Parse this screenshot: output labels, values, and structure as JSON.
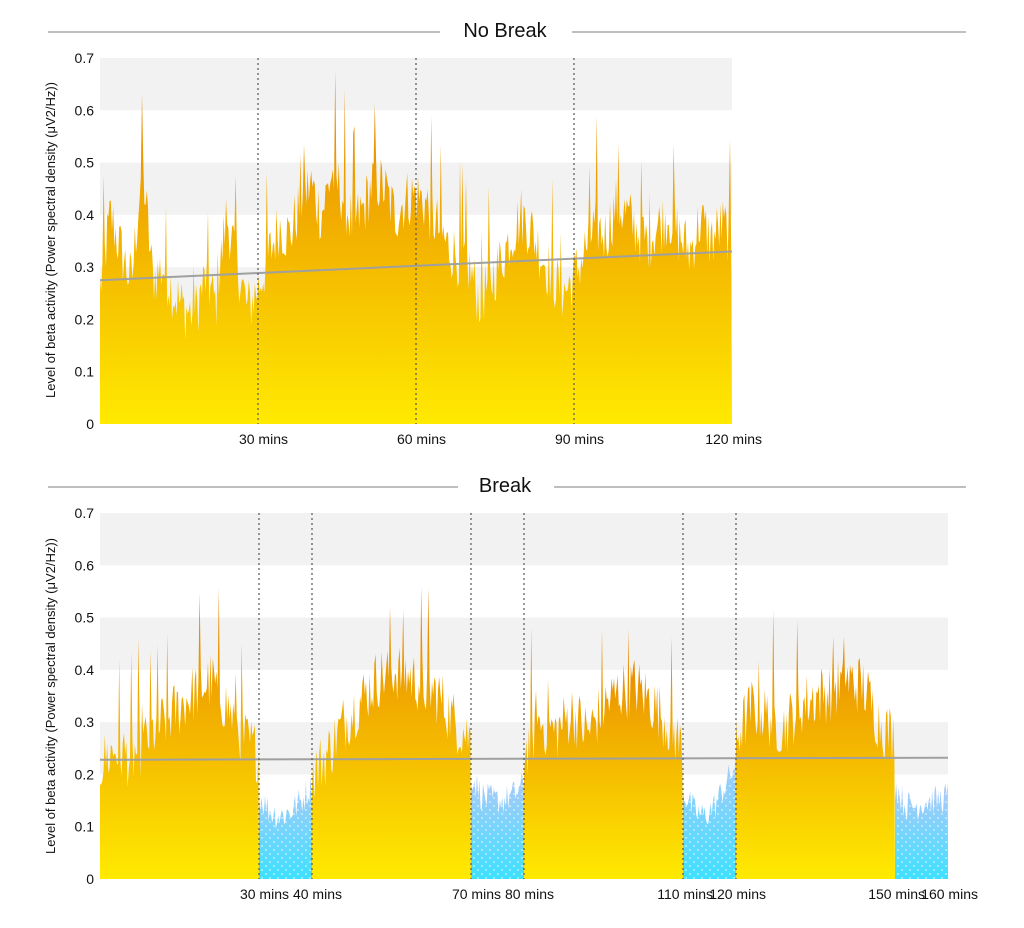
{
  "chart_data": [
    {
      "type": "area",
      "title": "No Break",
      "ylabel": "Level of beta activity (Power spectral density (μV2/Hz))",
      "xlabel": "",
      "ylim": [
        0,
        0.7
      ],
      "xlim": [
        0,
        120
      ],
      "yticks": [
        "0",
        "0.1",
        "0.2",
        "0.3",
        "0.4",
        "0.5",
        "0.6",
        "0.7"
      ],
      "xticks": [
        {
          "value": 30,
          "label": "30 mins"
        },
        {
          "value": 60,
          "label": "60 mins"
        },
        {
          "value": 90,
          "label": "90 mins"
        },
        {
          "value": 120,
          "label": "120 mins"
        }
      ],
      "dividers": [
        30,
        60,
        90
      ],
      "grid": "alternating-bands",
      "colors": {
        "active_top": "#e8900a",
        "active_bottom": "#ffe800",
        "trend": "#a0a0a0",
        "band": "#f2f2f2"
      },
      "trend": {
        "x": [
          0,
          120
        ],
        "y": [
          0.275,
          0.33
        ]
      },
      "series": [
        {
          "phase": "active",
          "x": [
            0,
            2,
            4,
            6,
            8,
            10,
            12,
            14,
            16,
            18,
            20,
            22,
            24,
            26,
            28,
            30,
            32,
            34,
            36,
            38,
            40,
            42,
            44,
            46,
            48,
            50,
            52,
            54,
            56,
            58,
            60,
            62,
            64,
            66,
            68,
            70,
            72,
            74,
            76,
            78,
            80,
            82,
            84,
            86,
            88,
            90,
            92,
            94,
            96,
            98,
            100,
            102,
            104,
            106,
            108,
            110,
            112,
            114,
            116,
            118,
            120
          ],
          "y": [
            0.26,
            0.4,
            0.33,
            0.27,
            0.5,
            0.28,
            0.3,
            0.25,
            0.22,
            0.21,
            0.28,
            0.23,
            0.4,
            0.31,
            0.22,
            0.26,
            0.32,
            0.38,
            0.36,
            0.42,
            0.46,
            0.4,
            0.48,
            0.44,
            0.38,
            0.41,
            0.47,
            0.45,
            0.4,
            0.43,
            0.44,
            0.42,
            0.38,
            0.34,
            0.32,
            0.3,
            0.24,
            0.27,
            0.31,
            0.36,
            0.4,
            0.37,
            0.32,
            0.28,
            0.25,
            0.28,
            0.33,
            0.38,
            0.36,
            0.42,
            0.4,
            0.37,
            0.35,
            0.38,
            0.4,
            0.36,
            0.33,
            0.39,
            0.35,
            0.38,
            0.36
          ]
        }
      ]
    },
    {
      "type": "area",
      "title": "Break",
      "ylabel": "Level of beta activity (Power spectral density (μV2/Hz))",
      "xlabel": "",
      "ylim": [
        0,
        0.7
      ],
      "xlim": [
        0,
        160
      ],
      "yticks": [
        "0",
        "0.1",
        "0.2",
        "0.3",
        "0.4",
        "0.5",
        "0.6",
        "0.7"
      ],
      "xticks": [
        {
          "value": 30,
          "label": "30 mins"
        },
        {
          "value": 40,
          "label": "40 mins"
        },
        {
          "value": 70,
          "label": "70 mins"
        },
        {
          "value": 80,
          "label": "80 mins"
        },
        {
          "value": 110,
          "label": "110 mins"
        },
        {
          "value": 120,
          "label": "120 mins"
        },
        {
          "value": 150,
          "label": "150 mins"
        },
        {
          "value": 160,
          "label": "160 mins"
        }
      ],
      "dividers": [
        30,
        40,
        70,
        80,
        110,
        120
      ],
      "grid": "alternating-bands",
      "colors": {
        "active_top": "#e8900a",
        "active_bottom": "#ffe800",
        "break_top": "#a8c8f8",
        "break_bottom": "#40e0ff",
        "trend": "#a0a0a0",
        "band": "#f2f2f2"
      },
      "trend": {
        "x": [
          0,
          160
        ],
        "y": [
          0.228,
          0.232
        ]
      },
      "series": [
        {
          "phase": "active",
          "x": [
            0,
            3,
            6,
            9,
            12,
            15,
            18,
            21,
            24,
            27,
            30
          ],
          "y": [
            0.22,
            0.25,
            0.23,
            0.27,
            0.3,
            0.33,
            0.36,
            0.38,
            0.33,
            0.27,
            0.24
          ]
        },
        {
          "phase": "break",
          "x": [
            30,
            32,
            34,
            36,
            38,
            40
          ],
          "y": [
            0.16,
            0.13,
            0.12,
            0.13,
            0.15,
            0.18
          ]
        },
        {
          "phase": "active",
          "x": [
            40,
            43,
            46,
            49,
            52,
            55,
            58,
            61,
            64,
            67,
            70
          ],
          "y": [
            0.2,
            0.24,
            0.3,
            0.34,
            0.38,
            0.4,
            0.39,
            0.37,
            0.35,
            0.3,
            0.27
          ]
        },
        {
          "phase": "break",
          "x": [
            70,
            72,
            74,
            76,
            78,
            80
          ],
          "y": [
            0.2,
            0.16,
            0.15,
            0.15,
            0.16,
            0.18
          ]
        },
        {
          "phase": "active",
          "x": [
            80,
            83,
            86,
            89,
            92,
            95,
            98,
            101,
            104,
            107,
            110
          ],
          "y": [
            0.24,
            0.3,
            0.28,
            0.32,
            0.28,
            0.33,
            0.36,
            0.37,
            0.34,
            0.3,
            0.25
          ]
        },
        {
          "phase": "break",
          "x": [
            110,
            112,
            114,
            116,
            118,
            120
          ],
          "y": [
            0.17,
            0.13,
            0.12,
            0.14,
            0.18,
            0.22
          ]
        },
        {
          "phase": "active",
          "x": [
            120,
            123,
            126,
            129,
            132,
            135,
            138,
            141,
            144,
            147,
            150
          ],
          "y": [
            0.27,
            0.33,
            0.31,
            0.29,
            0.33,
            0.35,
            0.36,
            0.38,
            0.37,
            0.3,
            0.27
          ]
        },
        {
          "phase": "break",
          "x": [
            150,
            152,
            154,
            156,
            158,
            160
          ],
          "y": [
            0.18,
            0.14,
            0.14,
            0.15,
            0.15,
            0.16
          ]
        }
      ]
    }
  ]
}
